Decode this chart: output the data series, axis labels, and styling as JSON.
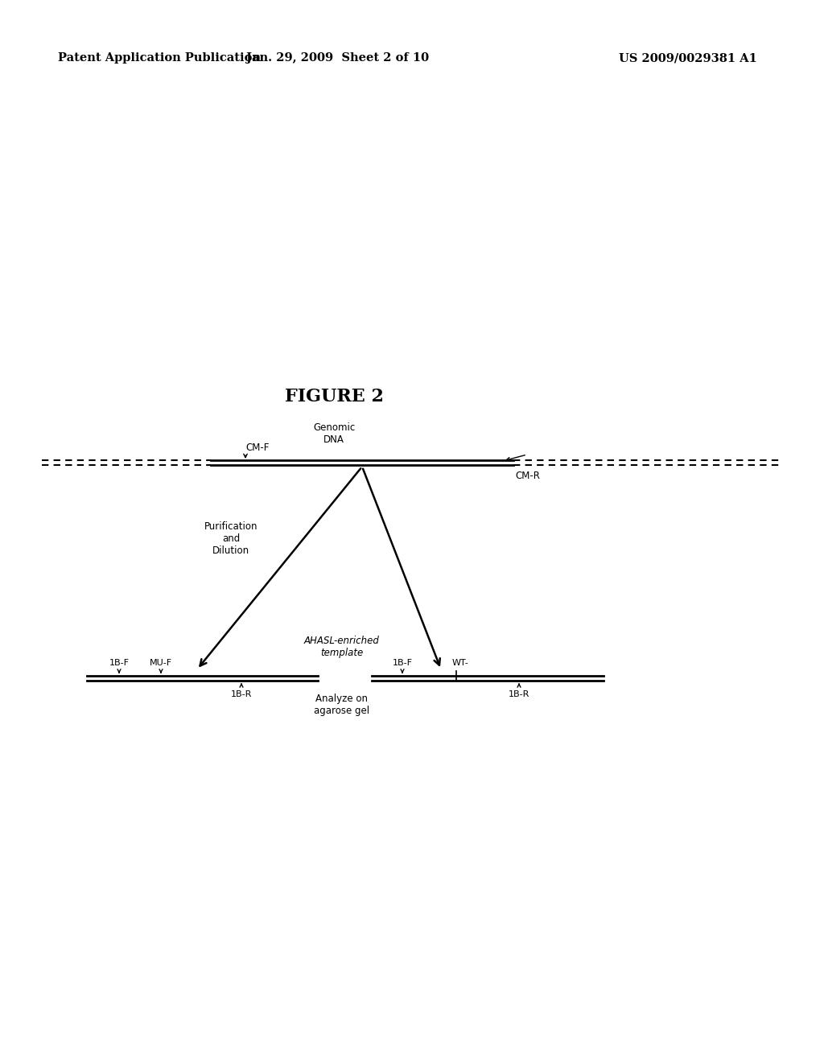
{
  "header_left": "Patent Application Publication",
  "header_mid": "Jan. 29, 2009  Sheet 2 of 10",
  "header_right": "US 2009/0029381 A1",
  "figure_title": "FIGURE 2",
  "genomic_dna_label": "Genomic\nDNA",
  "cm_f_label": "CM-F",
  "cm_r_label": "CM-R",
  "purification_label": "Purification\nand\nDilution",
  "ahasl_label": "AHASL-enriched\ntemplate",
  "analyze_label": "Analyze on\nagarose gel",
  "left_band_1bf": "1B-F",
  "left_band_muf": "MU-F",
  "left_band_1br": "1B-R",
  "right_band_1bf": "1B-F",
  "right_band_wt": "WT-",
  "right_band_1br": "1B-R",
  "bg_color": "#ffffff",
  "line_color": "#000000"
}
